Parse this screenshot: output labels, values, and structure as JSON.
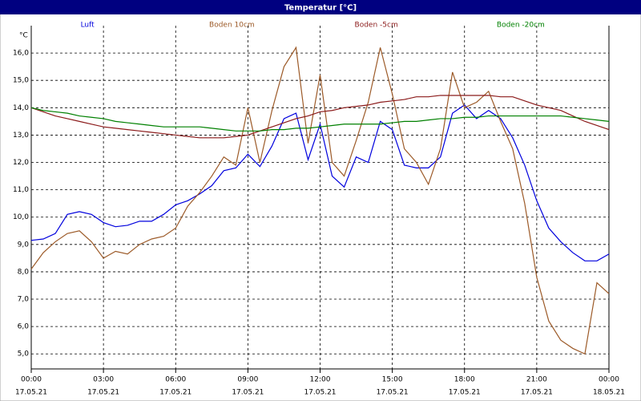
{
  "chart_data": {
    "type": "line",
    "title": "Temperatur [°C]",
    "y_label": "°C",
    "x": [
      0,
      0.5,
      1,
      1.5,
      2,
      2.5,
      3,
      3.5,
      4,
      4.5,
      5,
      5.5,
      6,
      6.5,
      7,
      7.5,
      8,
      8.5,
      9,
      9.5,
      10,
      10.5,
      11,
      11.5,
      12,
      12.5,
      13,
      13.5,
      14,
      14.5,
      15,
      15.5,
      16,
      16.5,
      17,
      17.5,
      18,
      18.5,
      19,
      19.5,
      20,
      20.5,
      21,
      21.5,
      22,
      22.5,
      23,
      23.5,
      24
    ],
    "series": [
      {
        "name": "Luft",
        "color": "#0000dd",
        "values": [
          9.15,
          9.2,
          9.4,
          10.1,
          10.2,
          10.1,
          9.8,
          9.65,
          9.7,
          9.85,
          9.85,
          10.1,
          10.45,
          10.6,
          10.85,
          11.15,
          11.7,
          11.8,
          12.3,
          11.85,
          12.6,
          13.6,
          13.8,
          12.1,
          13.4,
          11.5,
          11.1,
          12.2,
          12.0,
          13.5,
          13.2,
          11.9,
          11.8,
          11.8,
          12.2,
          13.8,
          14.1,
          13.6,
          13.9,
          13.6,
          12.9,
          11.9,
          10.6,
          9.6,
          9.1,
          8.7,
          8.4,
          8.4,
          8.65
        ]
      },
      {
        "name": "Boden 10cm",
        "color": "#9c5a28",
        "values": [
          8.1,
          8.7,
          9.1,
          9.4,
          9.5,
          9.1,
          8.5,
          8.75,
          8.65,
          9.0,
          9.2,
          9.3,
          9.6,
          10.4,
          10.9,
          11.5,
          12.2,
          11.9,
          14.0,
          12.0,
          13.9,
          15.5,
          16.2,
          12.7,
          15.2,
          12.0,
          11.5,
          12.8,
          14.2,
          16.2,
          14.5,
          12.5,
          12.0,
          11.2,
          12.5,
          15.3,
          14.0,
          14.2,
          14.6,
          13.5,
          12.5,
          10.5,
          7.8,
          6.2,
          5.5,
          5.2,
          5.0,
          7.6,
          7.2
        ]
      },
      {
        "name": "Boden -5cm",
        "color": "#8b1a1a",
        "values": [
          14.0,
          13.85,
          13.7,
          13.6,
          13.5,
          13.4,
          13.3,
          13.25,
          13.2,
          13.15,
          13.1,
          13.05,
          13.0,
          12.95,
          12.9,
          12.9,
          12.9,
          12.95,
          13.0,
          13.15,
          13.3,
          13.45,
          13.6,
          13.7,
          13.85,
          13.9,
          14.0,
          14.05,
          14.1,
          14.2,
          14.25,
          14.3,
          14.4,
          14.4,
          14.45,
          14.45,
          14.45,
          14.45,
          14.45,
          14.4,
          14.4,
          14.25,
          14.1,
          14.0,
          13.9,
          13.7,
          13.5,
          13.35,
          13.2
        ]
      },
      {
        "name": "Boden -20cm",
        "color": "#008000",
        "values": [
          14.0,
          13.9,
          13.85,
          13.8,
          13.7,
          13.65,
          13.6,
          13.5,
          13.45,
          13.4,
          13.35,
          13.3,
          13.3,
          13.3,
          13.3,
          13.25,
          13.2,
          13.15,
          13.15,
          13.15,
          13.2,
          13.2,
          13.25,
          13.25,
          13.3,
          13.35,
          13.4,
          13.4,
          13.4,
          13.4,
          13.45,
          13.5,
          13.5,
          13.55,
          13.6,
          13.6,
          13.65,
          13.65,
          13.7,
          13.7,
          13.7,
          13.7,
          13.7,
          13.7,
          13.7,
          13.65,
          13.6,
          13.55,
          13.5
        ]
      }
    ],
    "xlim": [
      0,
      24
    ],
    "xticks": [
      {
        "value": 0,
        "label": "00:00"
      },
      {
        "value": 3,
        "label": "03:00"
      },
      {
        "value": 6,
        "label": "06:00"
      },
      {
        "value": 9,
        "label": "09:00"
      },
      {
        "value": 12,
        "label": "12:00"
      },
      {
        "value": 15,
        "label": "15:00"
      },
      {
        "value": 18,
        "label": "18:00"
      },
      {
        "value": 21,
        "label": "21:00"
      },
      {
        "value": 24,
        "label": "00:00"
      }
    ],
    "xtick_dates": [
      "17.05.21",
      "17.05.21",
      "17.05.21",
      "17.05.21",
      "17.05.21",
      "17.05.21",
      "17.05.21",
      "17.05.21",
      "18.05.21"
    ],
    "ylim": [
      4.45,
      17
    ],
    "yticks": [
      {
        "value": 5,
        "label": "5,0"
      },
      {
        "value": 6,
        "label": "6,0"
      },
      {
        "value": 7,
        "label": "7,0"
      },
      {
        "value": 8,
        "label": "8,0"
      },
      {
        "value": 9,
        "label": "9,0"
      },
      {
        "value": 10,
        "label": "10,0"
      },
      {
        "value": 11,
        "label": "11,0"
      },
      {
        "value": 12,
        "label": "12,0"
      },
      {
        "value": 13,
        "label": "13,0"
      },
      {
        "value": 14,
        "label": "14,0"
      },
      {
        "value": 15,
        "label": "15,0"
      },
      {
        "value": 16,
        "label": "16,0"
      }
    ],
    "grid": true
  }
}
